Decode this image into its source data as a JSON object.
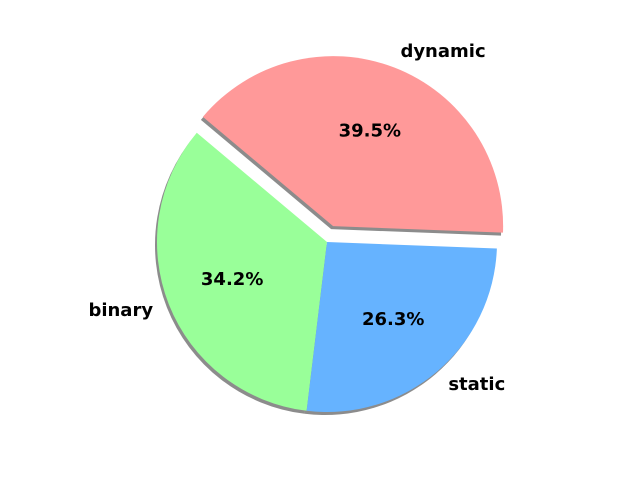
{
  "chart_data": {
    "type": "pie",
    "categories": [
      "binary",
      "static",
      "dynamic"
    ],
    "values": [
      34.2,
      26.3,
      39.5
    ],
    "value_labels": [
      "34.2%",
      "26.3%",
      "39.5%"
    ],
    "colors": [
      "#99ff99",
      "#66b3ff",
      "#ff9999"
    ],
    "exploded": [
      "dynamic"
    ],
    "shadow": true,
    "title": "",
    "legend": "none"
  }
}
